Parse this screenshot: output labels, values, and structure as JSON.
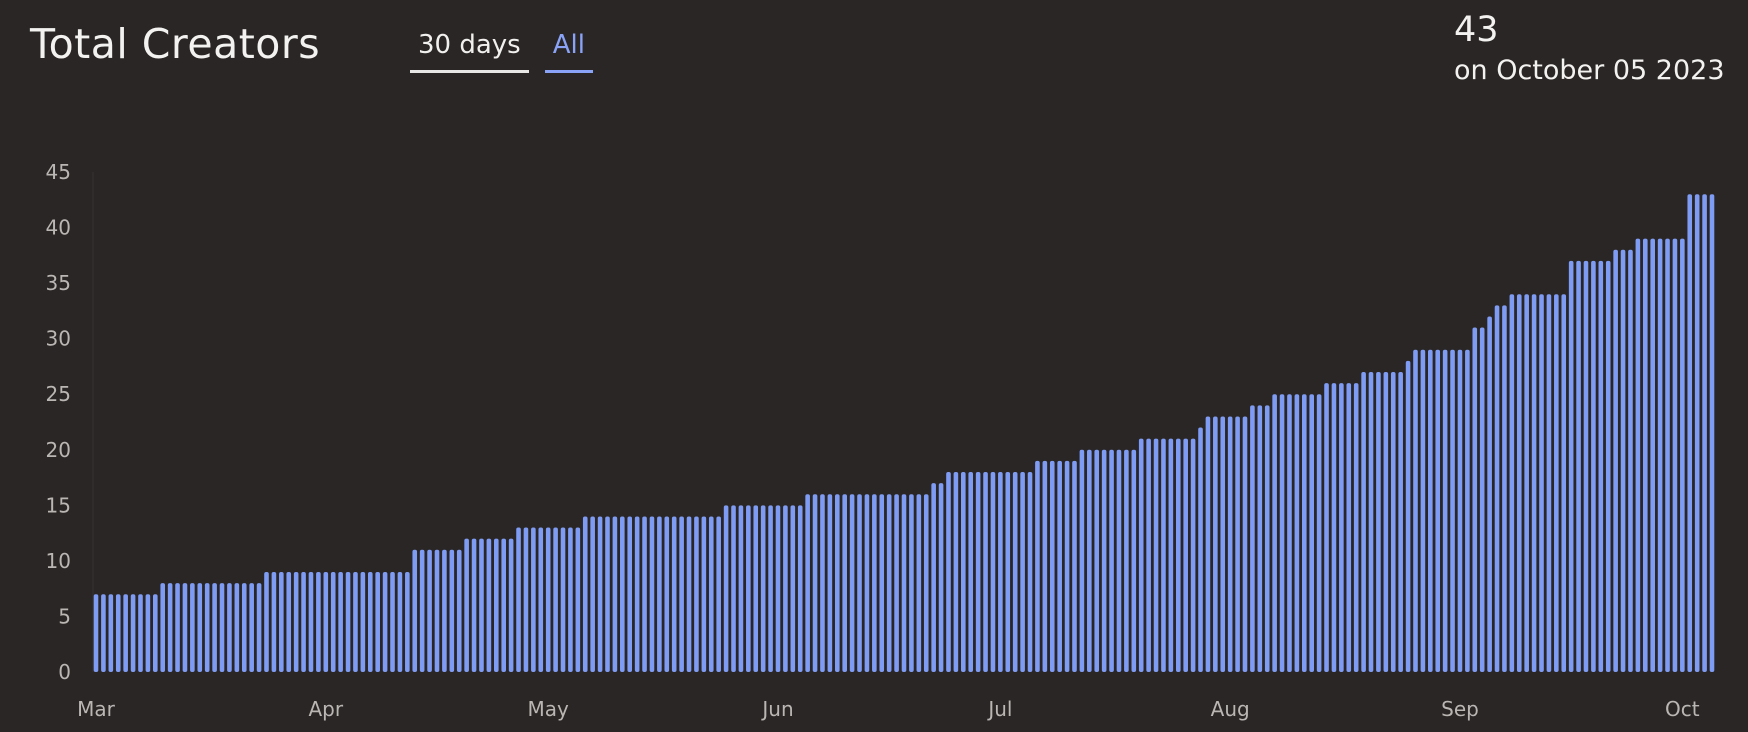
{
  "header": {
    "title": "Total Creators",
    "tabs": [
      {
        "label": "30 days",
        "active": false
      },
      {
        "label": "All",
        "active": true
      }
    ]
  },
  "readout": {
    "value": "43",
    "date_text": "on October 05 2023"
  },
  "colors": {
    "background": "#292625",
    "bar": "#7f9cf5",
    "tab_active": "#8aa3f7",
    "tick_text": "#b9b6b3"
  },
  "chart_data": {
    "type": "bar",
    "x_start": "2023-03-01",
    "x_end": "2023-10-05",
    "xlabel": "",
    "ylabel": "",
    "ylim": [
      0,
      45
    ],
    "y_ticks": [
      0,
      5,
      10,
      15,
      20,
      25,
      30,
      35,
      40,
      45
    ],
    "x_ticks": [
      {
        "label": "Mar",
        "date": "2023-03-01"
      },
      {
        "label": "Apr",
        "date": "2023-04-01"
      },
      {
        "label": "May",
        "date": "2023-05-01"
      },
      {
        "label": "Jun",
        "date": "2023-06-01"
      },
      {
        "label": "Jul",
        "date": "2023-07-01"
      },
      {
        "label": "Aug",
        "date": "2023-08-01"
      },
      {
        "label": "Sep",
        "date": "2023-09-01"
      },
      {
        "label": "Oct",
        "date": "2023-10-01"
      }
    ],
    "steps": [
      {
        "from": "2023-03-01",
        "value": 7
      },
      {
        "from": "2023-03-10",
        "value": 8
      },
      {
        "from": "2023-03-24",
        "value": 9
      },
      {
        "from": "2023-04-13",
        "value": 11
      },
      {
        "from": "2023-04-20",
        "value": 12
      },
      {
        "from": "2023-04-27",
        "value": 13
      },
      {
        "from": "2023-05-06",
        "value": 14
      },
      {
        "from": "2023-05-25",
        "value": 15
      },
      {
        "from": "2023-06-05",
        "value": 16
      },
      {
        "from": "2023-06-22",
        "value": 17
      },
      {
        "from": "2023-06-24",
        "value": 18
      },
      {
        "from": "2023-07-06",
        "value": 19
      },
      {
        "from": "2023-07-12",
        "value": 20
      },
      {
        "from": "2023-07-20",
        "value": 21
      },
      {
        "from": "2023-07-28",
        "value": 22
      },
      {
        "from": "2023-07-29",
        "value": 23
      },
      {
        "from": "2023-08-04",
        "value": 24
      },
      {
        "from": "2023-08-07",
        "value": 25
      },
      {
        "from": "2023-08-14",
        "value": 26
      },
      {
        "from": "2023-08-19",
        "value": 27
      },
      {
        "from": "2023-08-25",
        "value": 28
      },
      {
        "from": "2023-08-26",
        "value": 29
      },
      {
        "from": "2023-09-03",
        "value": 31
      },
      {
        "from": "2023-09-05",
        "value": 32
      },
      {
        "from": "2023-09-06",
        "value": 33
      },
      {
        "from": "2023-09-08",
        "value": 34
      },
      {
        "from": "2023-09-16",
        "value": 37
      },
      {
        "from": "2023-09-22",
        "value": 38
      },
      {
        "from": "2023-09-25",
        "value": 39
      },
      {
        "from": "2023-10-02",
        "value": 43
      }
    ]
  }
}
